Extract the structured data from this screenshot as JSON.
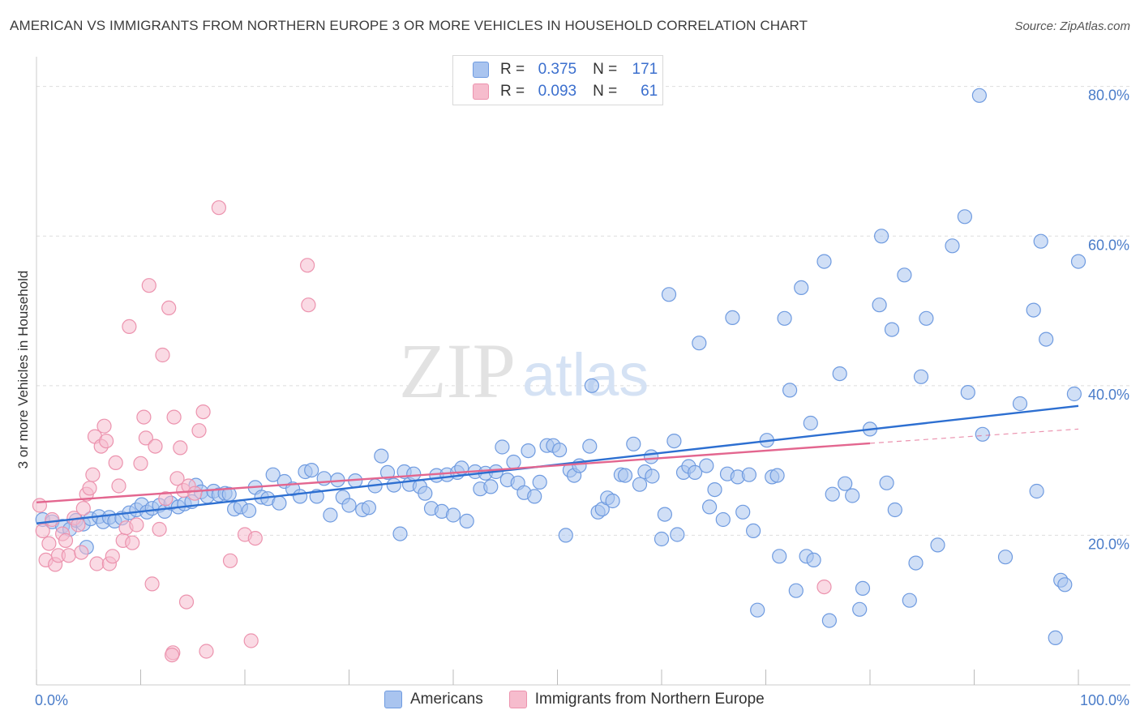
{
  "title": "AMERICAN VS IMMIGRANTS FROM NORTHERN EUROPE 3 OR MORE VEHICLES IN HOUSEHOLD CORRELATION CHART",
  "source": "Source: ZipAtlas.com",
  "watermark": {
    "zip": "ZIP",
    "atlas": "atlas"
  },
  "legend_stats": [
    {
      "r_label": "R =",
      "r_value": "0.375",
      "n_label": "N =",
      "n_value": "171"
    },
    {
      "r_label": "R =",
      "r_value": "0.093",
      "n_label": "N =",
      "n_value": "61"
    }
  ],
  "colors": {
    "blue_fill": "#a9c4ef",
    "blue_stroke": "#6f9be0",
    "blue_line": "#2d6fd1",
    "pink_fill": "#f6bccd",
    "pink_stroke": "#ec93ae",
    "pink_line": "#e3668f",
    "tick_label": "#4a7cc9",
    "grid": "#dddddd"
  },
  "chart_data": {
    "type": "scatter",
    "xlabel": "",
    "ylabel": "3 or more Vehicles in Household",
    "xlim": [
      0,
      100
    ],
    "ylim": [
      0,
      83
    ],
    "x_tick_labels": [
      {
        "value": 0,
        "label": "0.0%"
      },
      {
        "value": 100,
        "label": "100.0%"
      }
    ],
    "y_ticks": [
      {
        "value": 20,
        "label": "20.0%"
      },
      {
        "value": 40,
        "label": "40.0%"
      },
      {
        "value": 60,
        "label": "60.0%"
      },
      {
        "value": 80,
        "label": "80.0%"
      }
    ],
    "x_minor_ticks": [
      0,
      10,
      20,
      30,
      40,
      50,
      60,
      70,
      80,
      90,
      100
    ],
    "series": [
      {
        "name": "Americans",
        "color": "blue",
        "trend": {
          "x0": 0,
          "y0": 21.6,
          "x1": 100,
          "y1": 37.3
        },
        "points": [
          [
            0.6,
            22.1
          ],
          [
            1.5,
            21.8
          ],
          [
            2.5,
            21.2
          ],
          [
            3.2,
            20.8
          ],
          [
            3.8,
            22.0
          ],
          [
            4.5,
            21.5
          ],
          [
            4.8,
            18.4
          ],
          [
            5.2,
            22.2
          ],
          [
            6.0,
            22.5
          ],
          [
            6.4,
            21.8
          ],
          [
            7.0,
            22.4
          ],
          [
            7.5,
            21.9
          ],
          [
            8.2,
            22.3
          ],
          [
            8.9,
            23.0
          ],
          [
            9.6,
            23.4
          ],
          [
            10.1,
            24.1
          ],
          [
            10.6,
            23.1
          ],
          [
            11.1,
            23.6
          ],
          [
            11.8,
            24.0
          ],
          [
            12.3,
            23.2
          ],
          [
            12.9,
            24.3
          ],
          [
            13.6,
            23.8
          ],
          [
            14.2,
            24.2
          ],
          [
            14.9,
            24.5
          ],
          [
            15.3,
            26.7
          ],
          [
            15.8,
            25.8
          ],
          [
            16.4,
            25.2
          ],
          [
            17.0,
            25.9
          ],
          [
            17.5,
            25.4
          ],
          [
            18.1,
            25.6
          ],
          [
            18.5,
            25.5
          ],
          [
            19.0,
            23.5
          ],
          [
            19.6,
            23.8
          ],
          [
            20.4,
            23.3
          ],
          [
            21.0,
            26.4
          ],
          [
            21.6,
            25.1
          ],
          [
            22.2,
            24.9
          ],
          [
            22.7,
            28.1
          ],
          [
            23.3,
            24.3
          ],
          [
            23.8,
            27.2
          ],
          [
            24.6,
            26.2
          ],
          [
            25.3,
            25.2
          ],
          [
            25.8,
            28.5
          ],
          [
            26.4,
            28.7
          ],
          [
            26.9,
            25.2
          ],
          [
            27.6,
            27.6
          ],
          [
            28.2,
            22.7
          ],
          [
            28.9,
            27.4
          ],
          [
            29.4,
            25.1
          ],
          [
            30.0,
            24.0
          ],
          [
            30.6,
            27.3
          ],
          [
            31.3,
            23.4
          ],
          [
            31.9,
            23.7
          ],
          [
            32.5,
            26.6
          ],
          [
            33.1,
            30.6
          ],
          [
            33.7,
            28.4
          ],
          [
            34.3,
            26.7
          ],
          [
            34.9,
            20.2
          ],
          [
            35.3,
            28.5
          ],
          [
            35.8,
            26.8
          ],
          [
            36.2,
            28.2
          ],
          [
            36.8,
            26.5
          ],
          [
            37.3,
            25.6
          ],
          [
            37.9,
            23.6
          ],
          [
            38.4,
            28.0
          ],
          [
            38.9,
            23.2
          ],
          [
            39.4,
            28.1
          ],
          [
            40.0,
            22.7
          ],
          [
            40.4,
            28.4
          ],
          [
            40.8,
            29.0
          ],
          [
            41.3,
            21.9
          ],
          [
            42.1,
            28.5
          ],
          [
            42.6,
            26.2
          ],
          [
            43.1,
            28.3
          ],
          [
            43.6,
            26.5
          ],
          [
            44.1,
            28.5
          ],
          [
            44.7,
            31.8
          ],
          [
            45.2,
            27.4
          ],
          [
            45.8,
            29.8
          ],
          [
            46.2,
            27.0
          ],
          [
            46.8,
            25.7
          ],
          [
            47.2,
            31.3
          ],
          [
            47.8,
            25.2
          ],
          [
            48.3,
            27.1
          ],
          [
            49.0,
            32.0
          ],
          [
            49.6,
            32.0
          ],
          [
            50.2,
            31.4
          ],
          [
            50.8,
            20.0
          ],
          [
            51.2,
            28.7
          ],
          [
            51.6,
            28.0
          ],
          [
            52.1,
            29.3
          ],
          [
            53.1,
            31.9
          ],
          [
            53.3,
            40.0
          ],
          [
            53.9,
            23.1
          ],
          [
            54.3,
            23.5
          ],
          [
            54.8,
            25.0
          ],
          [
            55.3,
            24.6
          ],
          [
            56.1,
            28.1
          ],
          [
            56.5,
            28.0
          ],
          [
            57.3,
            32.2
          ],
          [
            57.9,
            26.8
          ],
          [
            58.4,
            28.5
          ],
          [
            59.0,
            30.5
          ],
          [
            59.1,
            27.9
          ],
          [
            60.0,
            19.5
          ],
          [
            60.3,
            22.8
          ],
          [
            60.7,
            52.2
          ],
          [
            61.2,
            32.6
          ],
          [
            61.5,
            20.1
          ],
          [
            62.1,
            28.4
          ],
          [
            62.6,
            29.2
          ],
          [
            63.2,
            28.4
          ],
          [
            63.6,
            45.7
          ],
          [
            64.3,
            29.3
          ],
          [
            64.6,
            23.8
          ],
          [
            65.1,
            26.1
          ],
          [
            65.9,
            22.1
          ],
          [
            66.3,
            28.2
          ],
          [
            66.8,
            49.1
          ],
          [
            67.3,
            27.8
          ],
          [
            67.8,
            23.1
          ],
          [
            68.4,
            28.1
          ],
          [
            68.8,
            20.6
          ],
          [
            69.2,
            10.0
          ],
          [
            70.1,
            32.7
          ],
          [
            70.6,
            27.8
          ],
          [
            71.1,
            28.0
          ],
          [
            71.3,
            17.2
          ],
          [
            71.8,
            49.0
          ],
          [
            72.3,
            39.4
          ],
          [
            72.9,
            12.6
          ],
          [
            73.4,
            53.1
          ],
          [
            73.9,
            17.2
          ],
          [
            74.3,
            35.0
          ],
          [
            74.6,
            16.7
          ],
          [
            75.6,
            56.6
          ],
          [
            76.1,
            8.6
          ],
          [
            76.4,
            25.5
          ],
          [
            77.1,
            41.6
          ],
          [
            77.6,
            26.9
          ],
          [
            78.3,
            25.3
          ],
          [
            79.0,
            10.1
          ],
          [
            79.3,
            12.9
          ],
          [
            80.0,
            34.2
          ],
          [
            80.9,
            50.8
          ],
          [
            81.1,
            60.0
          ],
          [
            81.6,
            27.0
          ],
          [
            82.1,
            47.5
          ],
          [
            82.4,
            23.4
          ],
          [
            83.3,
            54.8
          ],
          [
            83.8,
            11.3
          ],
          [
            84.4,
            16.3
          ],
          [
            84.9,
            41.2
          ],
          [
            85.4,
            49.0
          ],
          [
            86.5,
            18.7
          ],
          [
            87.9,
            58.7
          ],
          [
            89.1,
            62.6
          ],
          [
            89.4,
            39.1
          ],
          [
            90.5,
            78.8
          ],
          [
            90.8,
            33.5
          ],
          [
            93.0,
            17.1
          ],
          [
            94.4,
            37.6
          ],
          [
            95.7,
            50.1
          ],
          [
            96.0,
            25.9
          ],
          [
            96.4,
            59.3
          ],
          [
            96.9,
            46.2
          ],
          [
            98.3,
            14.0
          ],
          [
            98.7,
            13.4
          ],
          [
            99.6,
            38.9
          ],
          [
            100.0,
            56.6
          ],
          [
            97.8,
            6.3
          ]
        ]
      },
      {
        "name": "Immigrants from Northern Europe",
        "color": "pink",
        "trend": {
          "x0": 0,
          "y0": 24.4,
          "x1": 80,
          "y1": 32.3,
          "dash_x1": 100,
          "dash_y1": 34.2
        },
        "points": [
          [
            0.3,
            24.0
          ],
          [
            0.6,
            20.6
          ],
          [
            0.9,
            16.7
          ],
          [
            1.2,
            18.9
          ],
          [
            1.5,
            22.1
          ],
          [
            1.8,
            16.1
          ],
          [
            2.1,
            17.3
          ],
          [
            2.5,
            20.2
          ],
          [
            2.8,
            19.3
          ],
          [
            3.1,
            17.3
          ],
          [
            3.6,
            22.3
          ],
          [
            4.0,
            21.4
          ],
          [
            4.3,
            17.7
          ],
          [
            4.5,
            23.6
          ],
          [
            4.8,
            25.5
          ],
          [
            5.1,
            26.3
          ],
          [
            5.4,
            28.1
          ],
          [
            5.6,
            33.2
          ],
          [
            5.8,
            16.2
          ],
          [
            6.2,
            31.9
          ],
          [
            6.5,
            34.6
          ],
          [
            6.7,
            32.6
          ],
          [
            7.0,
            16.2
          ],
          [
            7.3,
            17.2
          ],
          [
            7.6,
            29.7
          ],
          [
            7.9,
            26.6
          ],
          [
            8.3,
            19.3
          ],
          [
            8.6,
            21.0
          ],
          [
            8.9,
            47.9
          ],
          [
            9.2,
            19.0
          ],
          [
            9.6,
            21.4
          ],
          [
            10.0,
            29.6
          ],
          [
            10.3,
            35.8
          ],
          [
            10.5,
            33.0
          ],
          [
            10.8,
            53.4
          ],
          [
            11.1,
            13.5
          ],
          [
            11.4,
            31.9
          ],
          [
            11.8,
            20.8
          ],
          [
            12.1,
            44.1
          ],
          [
            12.4,
            24.9
          ],
          [
            12.7,
            50.4
          ],
          [
            13.1,
            4.3
          ],
          [
            13.0,
            4.0
          ],
          [
            13.2,
            35.8
          ],
          [
            13.5,
            27.6
          ],
          [
            13.8,
            31.7
          ],
          [
            14.1,
            26.0
          ],
          [
            14.4,
            11.1
          ],
          [
            14.6,
            26.6
          ],
          [
            15.2,
            25.6
          ],
          [
            15.6,
            34.0
          ],
          [
            16.0,
            36.5
          ],
          [
            16.3,
            4.5
          ],
          [
            17.5,
            63.8
          ],
          [
            18.6,
            16.6
          ],
          [
            20.0,
            20.1
          ],
          [
            20.6,
            5.9
          ],
          [
            21.0,
            19.6
          ],
          [
            26.0,
            56.1
          ],
          [
            26.1,
            50.8
          ],
          [
            75.6,
            13.1
          ]
        ]
      }
    ]
  },
  "bottom_legend": [
    {
      "label": "Americans",
      "color": "blue"
    },
    {
      "label": "Immigrants from Northern Europe",
      "color": "pink"
    }
  ]
}
